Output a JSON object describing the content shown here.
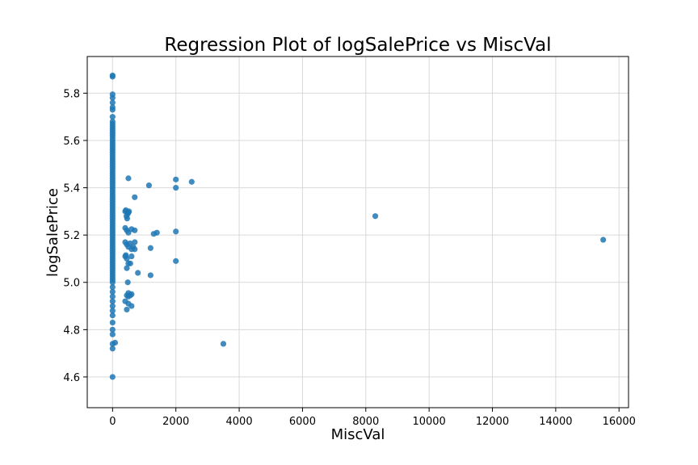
{
  "chart_data": {
    "type": "scatter",
    "title": "Regression Plot of logSalePrice vs MiscVal",
    "xlabel": "MiscVal",
    "ylabel": "logSalePrice",
    "xlim": [
      -800,
      16300
    ],
    "ylim": [
      4.47,
      5.955
    ],
    "xticks": [
      0,
      2000,
      4000,
      6000,
      8000,
      10000,
      12000,
      14000,
      16000
    ],
    "xtick_labels": [
      "0",
      "2000",
      "4000",
      "6000",
      "8000",
      "10000",
      "12000",
      "14000",
      "16000"
    ],
    "yticks": [
      4.6,
      4.8,
      5.0,
      5.2,
      5.4,
      5.6,
      5.8
    ],
    "ytick_labels": [
      "4.6",
      "4.8",
      "5.0",
      "5.2",
      "5.4",
      "5.6",
      "5.8"
    ],
    "grid": true,
    "point_color": "#1f77b4",
    "x": [
      0,
      0,
      0,
      0,
      0,
      0,
      0,
      0,
      0,
      0,
      0,
      0,
      0,
      0,
      0,
      0,
      0,
      0,
      0,
      0,
      0,
      0,
      0,
      0,
      0,
      0,
      0,
      0,
      0,
      0,
      0,
      0,
      0,
      0,
      0,
      0,
      0,
      0,
      0,
      0,
      0,
      0,
      0,
      0,
      0,
      0,
      0,
      0,
      0,
      0,
      0,
      0,
      0,
      0,
      0,
      0,
      0,
      0,
      0,
      0,
      0,
      0,
      0,
      0,
      0,
      0,
      0,
      0,
      0,
      0,
      0,
      0,
      0,
      0,
      0,
      0,
      0,
      0,
      0,
      0,
      0,
      0,
      0,
      0,
      0,
      0,
      0,
      0,
      0,
      0,
      80,
      400,
      420,
      440,
      460,
      480,
      500,
      520,
      400,
      450,
      500,
      550,
      600,
      700,
      400,
      450,
      500,
      600,
      700,
      650,
      400,
      420,
      450,
      500,
      560,
      600,
      700,
      450,
      480,
      500,
      400,
      450,
      500,
      600,
      450,
      500,
      560,
      600,
      700,
      500,
      800,
      1150,
      1200,
      1200,
      1300,
      1400,
      2000,
      2000,
      2000,
      2000,
      2500,
      3500,
      8300,
      15500
    ],
    "y": [
      5.875,
      5.87,
      5.795,
      5.78,
      5.76,
      5.74,
      5.73,
      5.7,
      5.68,
      5.67,
      5.66,
      5.65,
      5.64,
      5.63,
      5.62,
      5.61,
      5.6,
      5.59,
      5.58,
      5.57,
      5.56,
      5.55,
      5.54,
      5.53,
      5.52,
      5.51,
      5.5,
      5.49,
      5.48,
      5.47,
      5.46,
      5.45,
      5.44,
      5.43,
      5.42,
      5.41,
      5.4,
      5.39,
      5.38,
      5.37,
      5.36,
      5.35,
      5.34,
      5.33,
      5.32,
      5.31,
      5.3,
      5.29,
      5.28,
      5.27,
      5.26,
      5.25,
      5.24,
      5.23,
      5.22,
      5.21,
      5.2,
      5.19,
      5.18,
      5.17,
      5.16,
      5.15,
      5.14,
      5.13,
      5.12,
      5.11,
      5.1,
      5.09,
      5.08,
      5.07,
      5.06,
      5.05,
      5.04,
      5.03,
      5.02,
      5.01,
      5.0,
      4.98,
      4.96,
      4.94,
      4.92,
      4.9,
      4.88,
      4.86,
      4.83,
      4.8,
      4.78,
      4.74,
      4.72,
      4.6,
      4.745,
      5.3,
      5.305,
      5.28,
      5.27,
      5.29,
      5.295,
      5.3,
      5.17,
      5.16,
      5.15,
      5.165,
      5.14,
      5.17,
      5.23,
      5.22,
      5.21,
      5.225,
      5.22,
      5.15,
      5.11,
      5.115,
      5.1,
      5.08,
      5.08,
      5.11,
      5.14,
      5.06,
      5.0,
      4.955,
      4.92,
      4.885,
      4.91,
      4.9,
      4.945,
      4.94,
      4.945,
      4.95,
      5.36,
      5.44,
      5.04,
      5.41,
      5.145,
      5.03,
      5.205,
      5.21,
      5.435,
      5.4,
      5.215,
      5.09,
      5.425,
      4.74,
      5.28,
      5.18
    ]
  }
}
